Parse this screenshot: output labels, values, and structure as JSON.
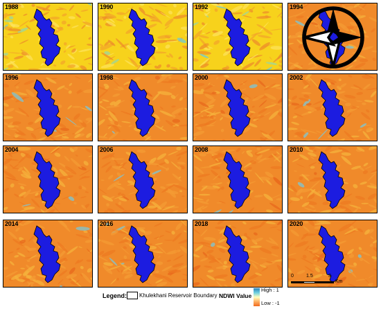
{
  "panels": [
    {
      "year": "1988",
      "palette": "yellow"
    },
    {
      "year": "1990",
      "palette": "yellow"
    },
    {
      "year": "1992",
      "palette": "yellow"
    },
    {
      "year": "1994",
      "palette": "orange"
    },
    {
      "year": "1996",
      "palette": "orange"
    },
    {
      "year": "1998",
      "palette": "orange"
    },
    {
      "year": "2000",
      "palette": "orange"
    },
    {
      "year": "2002",
      "palette": "orange"
    },
    {
      "year": "2004",
      "palette": "orange"
    },
    {
      "year": "2006",
      "palette": "orange"
    },
    {
      "year": "2008",
      "palette": "orange"
    },
    {
      "year": "2010",
      "palette": "orange"
    },
    {
      "year": "2014",
      "palette": "orange"
    },
    {
      "year": "2016",
      "palette": "orange"
    },
    {
      "year": "2018",
      "palette": "orange"
    },
    {
      "year": "2020",
      "palette": "orange"
    }
  ],
  "scalebar": {
    "t0": "0",
    "t1": "1.5",
    "t2": "3",
    "unit": "Km"
  },
  "north_arrow": "north-arrow-icon",
  "legend": {
    "title": "Legend:",
    "boundary_label": "Khulekhani Reservoir Boundary",
    "ndwi_label": "NDWI Value",
    "high": "High : 1",
    "low": "Low : -1",
    "ramp_colors": [
      "#2b83ba",
      "#6fd0e0",
      "#ffffbf",
      "#fdae61",
      "#f06a1e"
    ],
    "water_color": "#1c1ce0"
  }
}
